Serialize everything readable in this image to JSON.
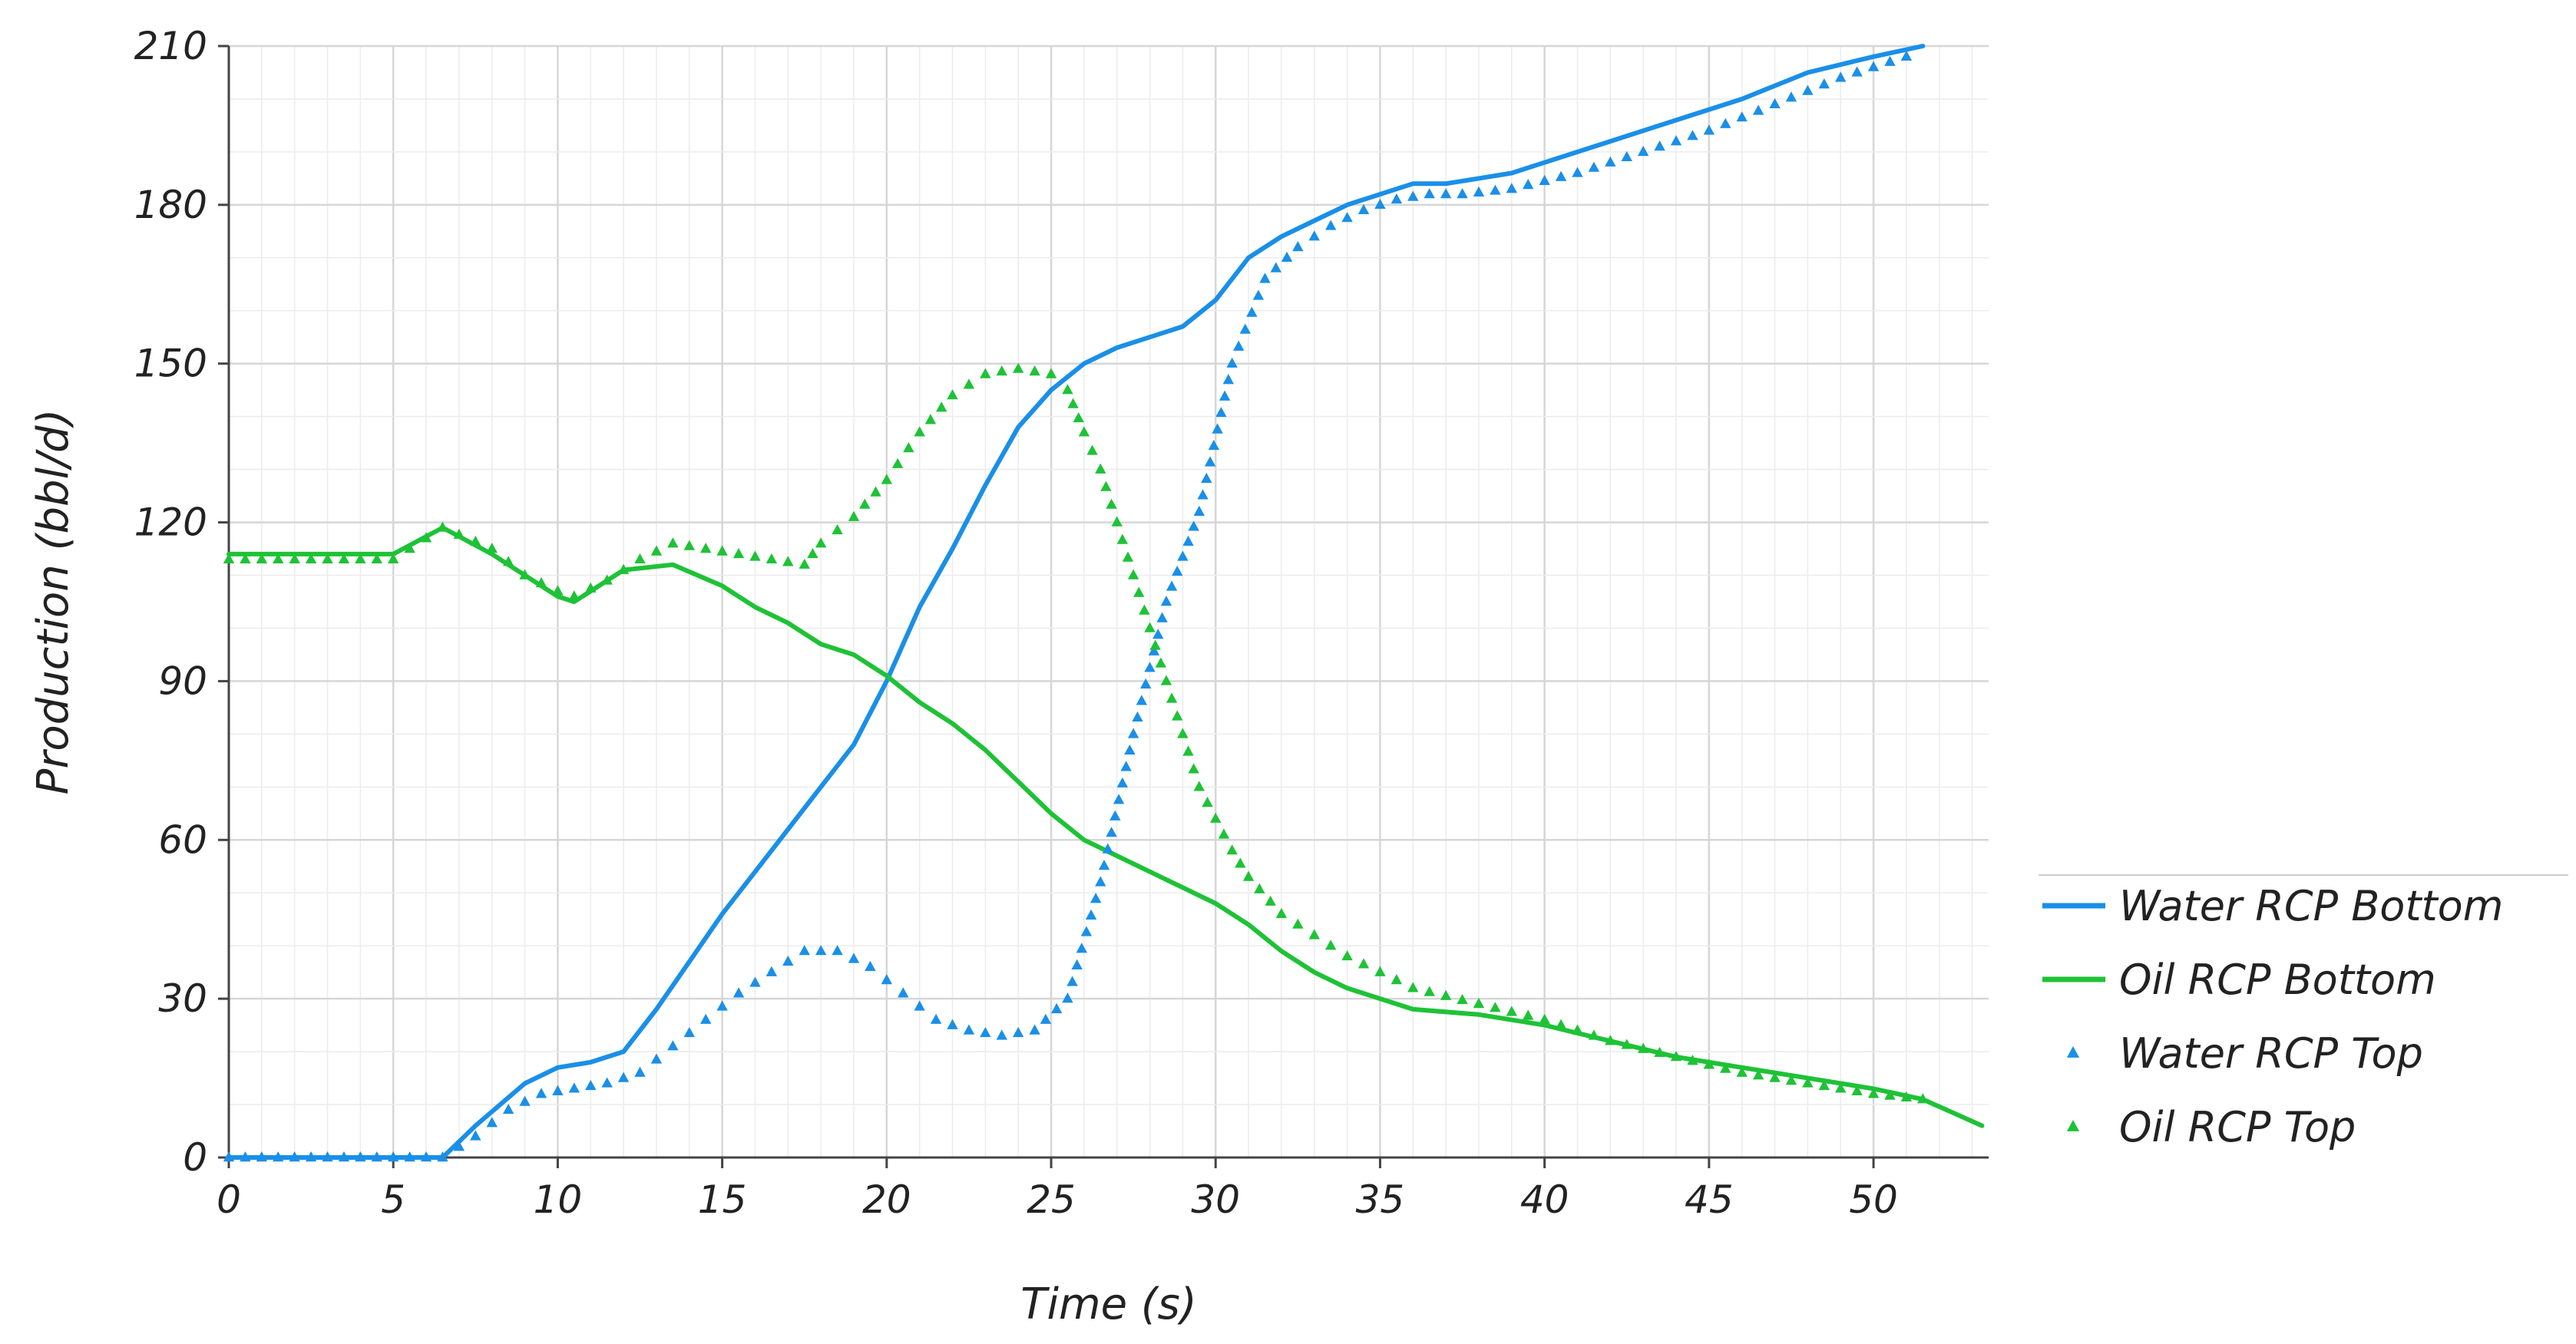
{
  "chart_data": {
    "type": "line",
    "xlabel": "Time (s)",
    "ylabel": "Production (bbl/d)",
    "xlim": [
      0,
      53.5
    ],
    "ylim": [
      0,
      210
    ],
    "xticks": [
      0,
      5,
      10,
      15,
      20,
      25,
      30,
      35,
      40,
      45,
      50
    ],
    "yticks": [
      0,
      30,
      60,
      90,
      120,
      150,
      180,
      210
    ],
    "grid": true,
    "legend_position": "bottom-right",
    "series": [
      {
        "name": "Water RCP Bottom",
        "style": "line",
        "color": "#1a8fe8",
        "x": [
          0,
          6.5,
          7.5,
          9,
          10,
          11,
          12,
          13,
          14,
          15,
          16,
          17,
          18,
          19,
          20,
          21,
          22,
          23,
          24,
          25,
          26,
          27,
          28,
          29,
          30,
          31,
          32,
          33,
          34,
          35,
          36,
          37,
          38,
          39,
          40,
          42,
          44,
          46,
          48,
          50,
          51.5
        ],
        "y": [
          0,
          0,
          6,
          14,
          17,
          18,
          20,
          28,
          37,
          46,
          54,
          62,
          70,
          78,
          90,
          104,
          115,
          127,
          138,
          145,
          150,
          153,
          155,
          157,
          162,
          170,
          174,
          177,
          180,
          182,
          184,
          184,
          185,
          186,
          188,
          192,
          196,
          200,
          205,
          208,
          210
        ]
      },
      {
        "name": "Oil RCP Bottom",
        "style": "line",
        "color": "#1ec236",
        "x": [
          0,
          5,
          6.5,
          8,
          9,
          10,
          10.5,
          11,
          12,
          13.5,
          15,
          16,
          17,
          18,
          19,
          20,
          21,
          22,
          23,
          24,
          25,
          26,
          27,
          28,
          29,
          30,
          31,
          32,
          33,
          34,
          35,
          36,
          38,
          40,
          42,
          44,
          46,
          48,
          50,
          51.5,
          53.3
        ],
        "y": [
          114,
          114,
          119,
          114,
          110,
          106,
          105,
          107,
          111,
          112,
          108,
          104,
          101,
          97,
          95,
          91,
          86,
          82,
          77,
          71,
          65,
          60,
          57,
          54,
          51,
          48,
          44,
          39,
          35,
          32,
          30,
          28,
          27,
          25,
          22,
          19,
          17,
          15,
          13,
          11,
          6
        ]
      },
      {
        "name": "Water RCP Top",
        "style": "markers",
        "color": "#1a8fe8",
        "x": [
          0,
          6.5,
          7.5,
          8.5,
          9.5,
          10.5,
          11.5,
          12.5,
          13.5,
          14.5,
          15.5,
          16.5,
          17.5,
          18.5,
          19.5,
          20.5,
          21.5,
          22.5,
          23.5,
          24.5,
          25.5,
          26.5,
          27.5,
          28.5,
          29.5,
          30.5,
          31.5,
          32.5,
          33.5,
          34.5,
          35.5,
          36.5,
          37.5,
          39,
          41,
          43,
          45,
          47,
          49,
          51
        ],
        "y": [
          0,
          0,
          4,
          9,
          12,
          13,
          14,
          16,
          21,
          26,
          31,
          35,
          39,
          39,
          36,
          31,
          26,
          24,
          23,
          24,
          30,
          52,
          80,
          105,
          122,
          150,
          166,
          172,
          176,
          179,
          181,
          182,
          182,
          183,
          186,
          190,
          194,
          199,
          204,
          208
        ]
      },
      {
        "name": "Oil RCP Top",
        "style": "markers",
        "color": "#1ec236",
        "x": [
          0,
          5,
          6.5,
          8,
          9,
          10,
          10.5,
          11.5,
          12.5,
          13.5,
          14.5,
          15.5,
          16.5,
          17.5,
          18,
          19,
          20,
          21,
          22,
          23,
          24,
          25,
          25.5,
          26,
          26.5,
          27,
          27.5,
          28,
          28.5,
          29,
          29.5,
          30,
          30.5,
          31,
          32,
          33,
          34,
          35,
          36,
          38,
          40,
          42,
          44,
          46,
          48,
          50,
          51.5
        ],
        "y": [
          113,
          113,
          119,
          115,
          110,
          107,
          106,
          109,
          113,
          116,
          115,
          114,
          113,
          112,
          116,
          121,
          128,
          137,
          144,
          148,
          149,
          148,
          145,
          137,
          130,
          120,
          110,
          100,
          90,
          80,
          70,
          64,
          58,
          53,
          46,
          42,
          38,
          35,
          32,
          29,
          26,
          22,
          19,
          16,
          14,
          12,
          11
        ]
      }
    ]
  }
}
